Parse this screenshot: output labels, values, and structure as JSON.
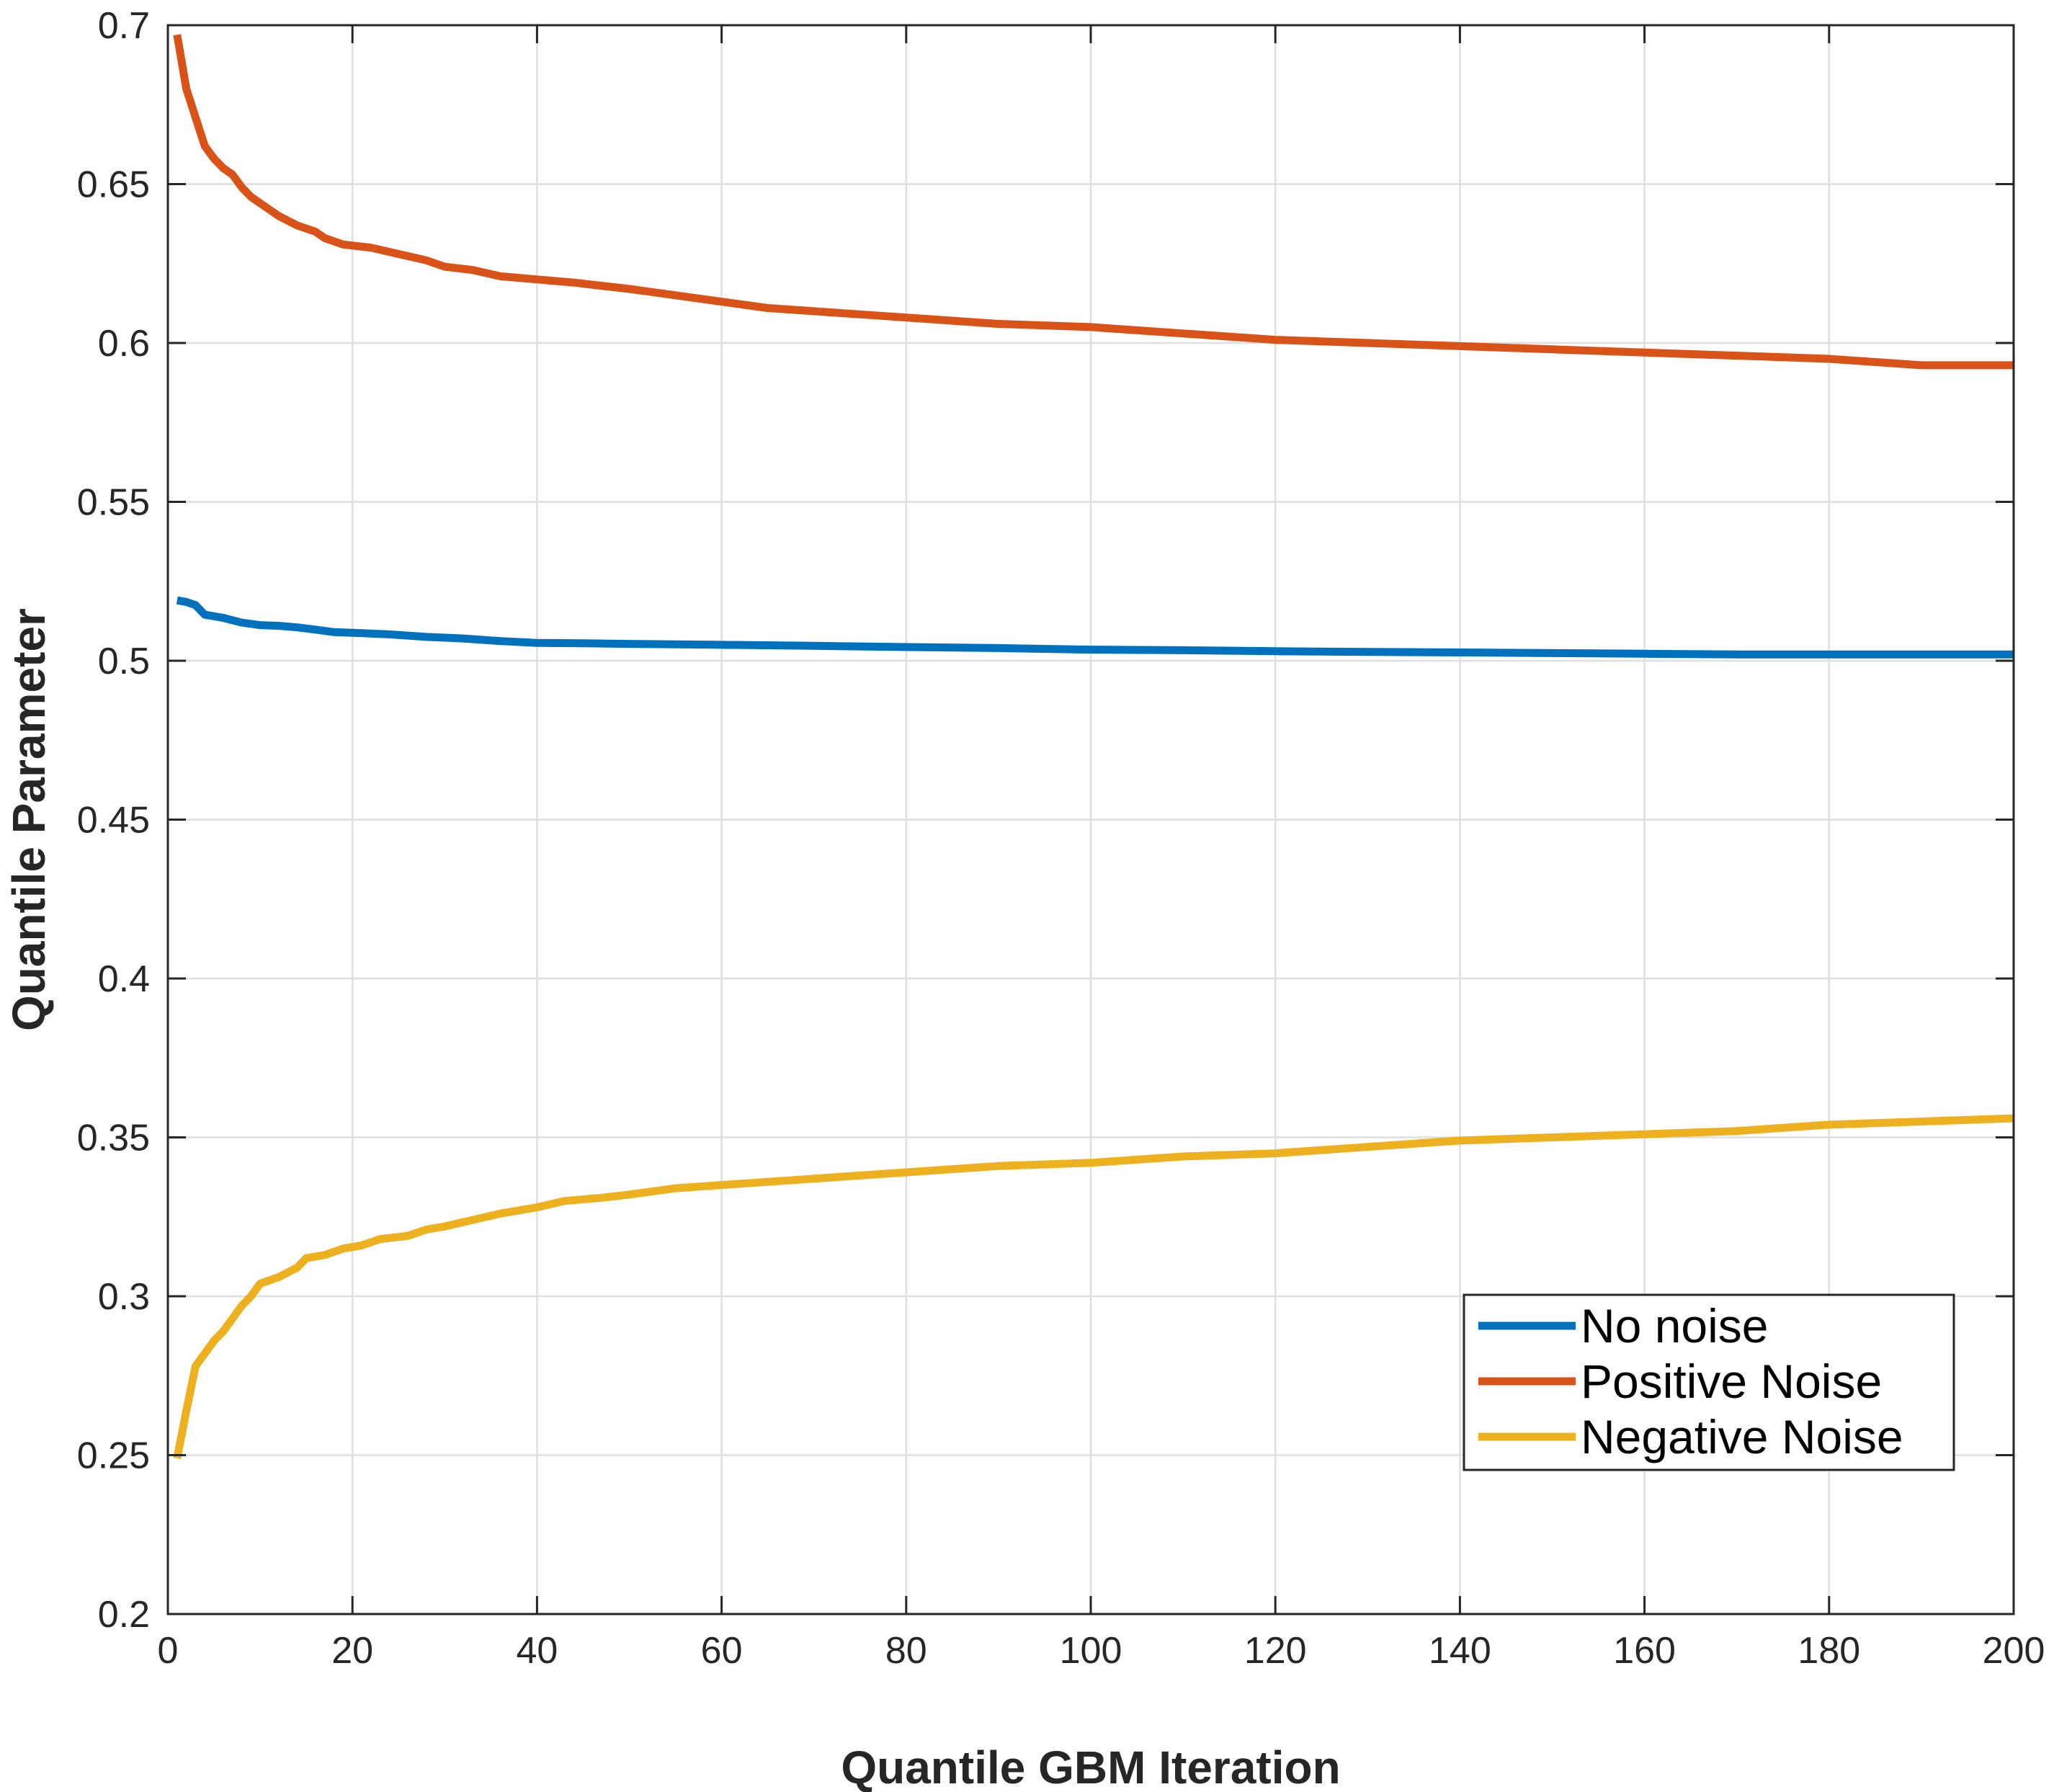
{
  "chart_data": {
    "type": "line",
    "title": "",
    "xlabel": "Quantile GBM Iteration",
    "ylabel": "Quantile Parameter",
    "xlim": [
      0,
      200
    ],
    "ylim": [
      0.2,
      0.7
    ],
    "xticks": [
      0,
      20,
      40,
      60,
      80,
      100,
      120,
      140,
      160,
      180,
      200
    ],
    "yticks": [
      0.2,
      0.25,
      0.3,
      0.35,
      0.4,
      0.45,
      0.5,
      0.55,
      0.6,
      0.65,
      0.7
    ],
    "xtick_labels": [
      "0",
      "20",
      "40",
      "60",
      "80",
      "100",
      "120",
      "140",
      "160",
      "180",
      "200"
    ],
    "ytick_labels": [
      "0.2",
      "0.25",
      "0.3",
      "0.35",
      "0.4",
      "0.45",
      "0.5",
      "0.55",
      "0.6",
      "0.65",
      "0.7"
    ],
    "grid": true,
    "legend_position": "lower-right",
    "series": [
      {
        "name": "No noise",
        "color": "#0072BD",
        "points": [
          [
            1,
            0.519
          ],
          [
            2,
            0.5185
          ],
          [
            3,
            0.5175
          ],
          [
            4,
            0.5145
          ],
          [
            6,
            0.5135
          ],
          [
            8,
            0.512
          ],
          [
            10,
            0.5112
          ],
          [
            12,
            0.511
          ],
          [
            14,
            0.5105
          ],
          [
            16,
            0.5098
          ],
          [
            18,
            0.509
          ],
          [
            20,
            0.5088
          ],
          [
            24,
            0.5083
          ],
          [
            28,
            0.5075
          ],
          [
            32,
            0.507
          ],
          [
            36,
            0.5062
          ],
          [
            40,
            0.5056
          ],
          [
            45,
            0.5055
          ],
          [
            50,
            0.5053
          ],
          [
            60,
            0.505
          ],
          [
            70,
            0.5047
          ],
          [
            80,
            0.5043
          ],
          [
            90,
            0.504
          ],
          [
            100,
            0.5035
          ],
          [
            110,
            0.5033
          ],
          [
            120,
            0.503
          ],
          [
            130,
            0.5028
          ],
          [
            140,
            0.5026
          ],
          [
            150,
            0.5024
          ],
          [
            160,
            0.5022
          ],
          [
            170,
            0.502
          ],
          [
            180,
            0.502
          ],
          [
            190,
            0.502
          ],
          [
            200,
            0.502
          ]
        ]
      },
      {
        "name": "Positive Noise",
        "color": "#D95319",
        "points": [
          [
            1,
            0.697
          ],
          [
            2,
            0.68
          ],
          [
            3,
            0.671
          ],
          [
            4,
            0.662
          ],
          [
            5,
            0.658
          ],
          [
            6,
            0.655
          ],
          [
            7,
            0.653
          ],
          [
            8,
            0.649
          ],
          [
            9,
            0.646
          ],
          [
            10,
            0.644
          ],
          [
            12,
            0.64
          ],
          [
            14,
            0.637
          ],
          [
            16,
            0.635
          ],
          [
            17,
            0.633
          ],
          [
            19,
            0.631
          ],
          [
            22,
            0.63
          ],
          [
            25,
            0.628
          ],
          [
            28,
            0.626
          ],
          [
            30,
            0.624
          ],
          [
            33,
            0.623
          ],
          [
            36,
            0.621
          ],
          [
            40,
            0.62
          ],
          [
            44,
            0.619
          ],
          [
            47,
            0.618
          ],
          [
            50,
            0.617
          ],
          [
            55,
            0.615
          ],
          [
            60,
            0.613
          ],
          [
            65,
            0.611
          ],
          [
            70,
            0.61
          ],
          [
            75,
            0.609
          ],
          [
            80,
            0.608
          ],
          [
            85,
            0.607
          ],
          [
            90,
            0.606
          ],
          [
            100,
            0.605
          ],
          [
            105,
            0.604
          ],
          [
            110,
            0.603
          ],
          [
            120,
            0.601
          ],
          [
            130,
            0.6
          ],
          [
            140,
            0.599
          ],
          [
            150,
            0.598
          ],
          [
            160,
            0.597
          ],
          [
            170,
            0.596
          ],
          [
            180,
            0.595
          ],
          [
            190,
            0.593
          ],
          [
            200,
            0.593
          ]
        ]
      },
      {
        "name": "Negative Noise",
        "color": "#EDB120",
        "points": [
          [
            1,
            0.249
          ],
          [
            2,
            0.264
          ],
          [
            3,
            0.278
          ],
          [
            4,
            0.282
          ],
          [
            5,
            0.286
          ],
          [
            6,
            0.289
          ],
          [
            7,
            0.293
          ],
          [
            8,
            0.297
          ],
          [
            9,
            0.3
          ],
          [
            10,
            0.304
          ],
          [
            12,
            0.306
          ],
          [
            14,
            0.309
          ],
          [
            15,
            0.312
          ],
          [
            17,
            0.313
          ],
          [
            19,
            0.315
          ],
          [
            21,
            0.316
          ],
          [
            23,
            0.318
          ],
          [
            26,
            0.319
          ],
          [
            28,
            0.321
          ],
          [
            30,
            0.322
          ],
          [
            33,
            0.324
          ],
          [
            36,
            0.326
          ],
          [
            40,
            0.328
          ],
          [
            43,
            0.33
          ],
          [
            47,
            0.331
          ],
          [
            50,
            0.332
          ],
          [
            55,
            0.334
          ],
          [
            60,
            0.335
          ],
          [
            65,
            0.336
          ],
          [
            70,
            0.337
          ],
          [
            75,
            0.338
          ],
          [
            80,
            0.339
          ],
          [
            85,
            0.34
          ],
          [
            90,
            0.341
          ],
          [
            100,
            0.342
          ],
          [
            110,
            0.344
          ],
          [
            120,
            0.345
          ],
          [
            130,
            0.347
          ],
          [
            140,
            0.349
          ],
          [
            150,
            0.35
          ],
          [
            160,
            0.351
          ],
          [
            170,
            0.352
          ],
          [
            180,
            0.354
          ],
          [
            190,
            0.355
          ],
          [
            200,
            0.356
          ]
        ]
      }
    ]
  }
}
